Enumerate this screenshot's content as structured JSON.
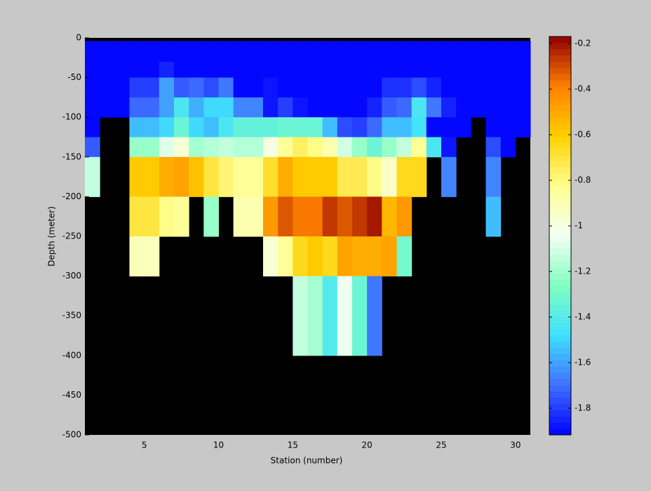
{
  "chart_data": {
    "type": "heatmap",
    "xlabel": "Station (number)",
    "ylabel": "Depth (meter)",
    "x": [
      1,
      2,
      3,
      4,
      5,
      6,
      7,
      8,
      9,
      10,
      11,
      12,
      13,
      14,
      15,
      16,
      17,
      18,
      19,
      20,
      21,
      22,
      23,
      24,
      25,
      26,
      27,
      28,
      29,
      30,
      31
    ],
    "y": [
      0,
      -4,
      -30,
      -50,
      -75,
      -100,
      -125,
      -150,
      -200,
      -250,
      -300,
      -400,
      -500
    ],
    "values": [
      [
        null,
        null,
        null,
        null,
        null,
        null,
        null,
        null,
        null,
        null,
        null,
        null,
        null,
        null,
        null,
        null,
        null,
        null,
        null,
        null,
        null,
        null,
        null,
        null,
        null,
        null,
        null,
        null,
        null,
        null
      ],
      [
        -1.9,
        -1.9,
        -1.9,
        -1.9,
        -1.9,
        -1.9,
        -1.9,
        -1.9,
        -1.9,
        -1.9,
        -1.9,
        -1.9,
        -1.9,
        -1.9,
        -1.9,
        -1.9,
        -1.9,
        -1.9,
        -1.9,
        -1.9,
        -1.9,
        -1.9,
        -1.9,
        -1.9,
        -1.9,
        -1.9,
        -1.9,
        -1.9,
        -1.9,
        -1.9
      ],
      [
        -1.9,
        -1.9,
        -1.9,
        -1.9,
        -1.9,
        -1.85,
        -1.9,
        -1.9,
        -1.9,
        -1.9,
        -1.9,
        -1.9,
        -1.9,
        -1.9,
        -1.9,
        -1.9,
        -1.9,
        -1.9,
        -1.9,
        -1.9,
        -1.9,
        -1.9,
        -1.9,
        -1.9,
        -1.9,
        -1.9,
        -1.9,
        -1.9,
        -1.9,
        -1.9
      ],
      [
        -1.9,
        -1.9,
        -1.9,
        -1.8,
        -1.8,
        -1.6,
        -1.75,
        -1.72,
        -1.78,
        -1.68,
        -1.9,
        -1.9,
        -1.87,
        -1.9,
        -1.9,
        -1.9,
        -1.9,
        -1.9,
        -1.9,
        -1.9,
        -1.83,
        -1.83,
        -1.78,
        -1.85,
        -1.9,
        -1.9,
        -1.9,
        -1.9,
        -1.9,
        -1.9
      ],
      [
        -1.9,
        -1.9,
        -1.9,
        -1.72,
        -1.72,
        -1.6,
        -1.45,
        -1.58,
        -1.5,
        -1.5,
        -1.65,
        -1.65,
        -1.87,
        -1.8,
        -1.88,
        -1.9,
        -1.9,
        -1.9,
        -1.9,
        -1.85,
        -1.75,
        -1.7,
        -1.45,
        -1.68,
        -1.85,
        -1.9,
        -1.9,
        -1.9,
        -1.9,
        -1.9
      ],
      [
        -1.9,
        null,
        null,
        -1.55,
        -1.55,
        -1.5,
        -1.32,
        -1.5,
        -1.55,
        -1.45,
        -1.35,
        -1.35,
        -1.35,
        -1.33,
        -1.33,
        -1.33,
        -1.55,
        -1.78,
        -1.8,
        -1.7,
        -1.55,
        -1.55,
        -1.48,
        -1.9,
        -1.9,
        -1.9,
        null,
        -1.9,
        -1.9,
        -1.9
      ],
      [
        -1.75,
        null,
        null,
        -1.22,
        -1.22,
        -1.08,
        -0.98,
        -1.2,
        -1.17,
        -1.14,
        -1.17,
        -1.17,
        -1.0,
        -0.85,
        -0.75,
        -0.82,
        -0.88,
        -1.1,
        -1.23,
        -1.32,
        -1.22,
        -1.15,
        -0.85,
        -1.45,
        -1.88,
        null,
        null,
        -1.78,
        -1.9,
        null
      ],
      [
        -1.15,
        null,
        null,
        -0.6,
        -0.6,
        -0.52,
        -0.48,
        -0.57,
        -0.7,
        -0.78,
        -0.85,
        -0.85,
        -0.68,
        -0.5,
        -0.6,
        -0.6,
        -0.6,
        -0.72,
        -0.72,
        -0.82,
        -0.95,
        -0.65,
        -0.65,
        null,
        -1.65,
        null,
        null,
        -1.65,
        null,
        null
      ],
      [
        null,
        null,
        null,
        -0.7,
        -0.7,
        -0.8,
        -0.85,
        null,
        -1.22,
        null,
        -0.9,
        -0.9,
        -0.45,
        -0.33,
        -0.38,
        -0.38,
        -0.27,
        -0.33,
        -0.27,
        -0.22,
        -0.55,
        -0.45,
        null,
        null,
        null,
        null,
        null,
        -1.55,
        null,
        null
      ],
      [
        null,
        null,
        null,
        -0.92,
        -0.92,
        null,
        null,
        null,
        null,
        null,
        null,
        null,
        -0.97,
        -0.85,
        -0.65,
        -0.6,
        -0.65,
        -0.48,
        -0.5,
        -0.5,
        -0.48,
        -1.3,
        null,
        null,
        null,
        null,
        null,
        null,
        null,
        null
      ],
      [
        null,
        null,
        null,
        null,
        null,
        null,
        null,
        null,
        null,
        null,
        null,
        null,
        null,
        null,
        -1.15,
        -1.2,
        -1.42,
        -1.05,
        -1.32,
        -1.68,
        null,
        null,
        null,
        null,
        null,
        null,
        null,
        null,
        null,
        null
      ],
      [
        null,
        null,
        null,
        null,
        null,
        null,
        null,
        null,
        null,
        null,
        null,
        null,
        null,
        null,
        null,
        null,
        null,
        null,
        null,
        null,
        null,
        null,
        null,
        null,
        null,
        null,
        null,
        null,
        null,
        null
      ]
    ],
    "xlim": [
      1,
      31
    ],
    "ylim": [
      -500,
      0
    ],
    "xticks": [
      5,
      10,
      15,
      20,
      25,
      30
    ],
    "yticks": [
      0,
      -50,
      -100,
      -150,
      -200,
      -250,
      -300,
      -350,
      -400,
      -450,
      -500
    ],
    "clim": [
      -1.917,
      -0.169
    ],
    "cticks": [
      -0.2,
      -0.4,
      -0.6,
      -0.8,
      -1,
      -1.2,
      -1.4,
      -1.6,
      -1.8
    ],
    "colormap": [
      "#0000ff",
      "#4070ff",
      "#40e0ff",
      "#80ffc0",
      "#f4fff4",
      "#ffff90",
      "#ffd000",
      "#ff8000",
      "#900000"
    ],
    "colormap_levels": 64,
    "axes_color": "#000000"
  }
}
